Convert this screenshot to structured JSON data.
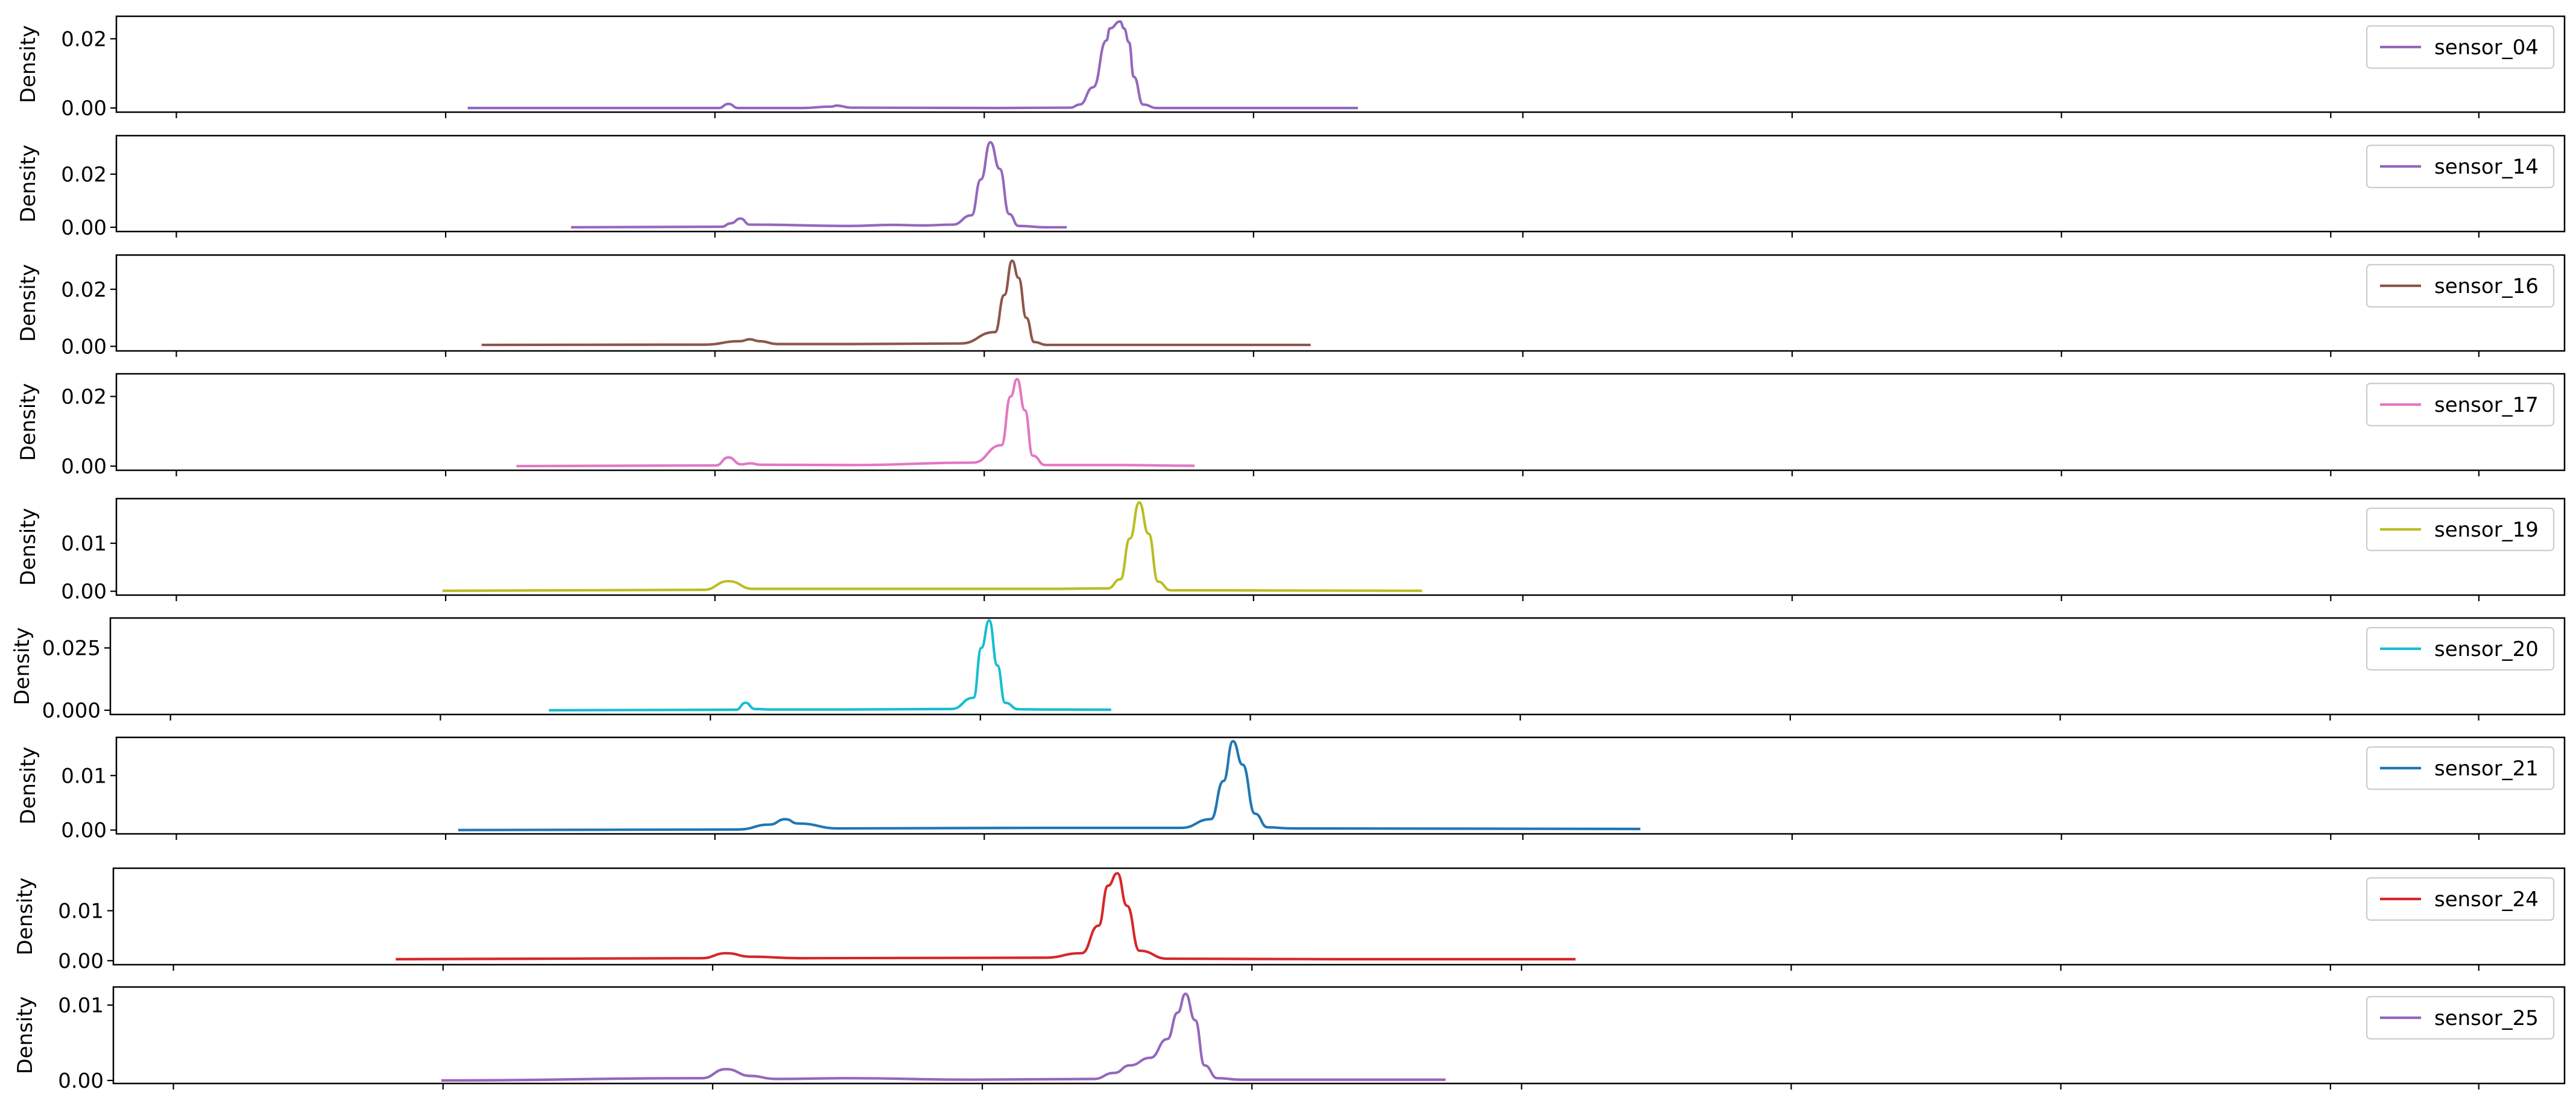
{
  "chart_data": [
    {
      "type": "line",
      "ylabel": "Density",
      "yticks": [
        "0.00",
        "0.02"
      ],
      "ylim": [
        -0.0012,
        0.0265
      ],
      "series": [
        {
          "name": "sensor_04",
          "color": "#9467bd",
          "x": [
            0.1435,
            0.2461,
            0.25,
            0.2539,
            0.28,
            0.2922,
            0.2942,
            0.3,
            0.36,
            0.3898,
            0.3935,
            0.399,
            0.4044,
            0.4058,
            0.41,
            0.4116,
            0.4136,
            0.4156,
            0.4194,
            0.425,
            0.44,
            0.5071
          ],
          "y": [
            0.0,
            0.0,
            0.0012,
            0.0,
            0.0,
            0.0004,
            0.0007,
            0.0001,
            0.0,
            0.0001,
            0.001,
            0.006,
            0.0195,
            0.023,
            0.025,
            0.023,
            0.019,
            0.009,
            0.001,
            0.0,
            0.0,
            0.0
          ]
        }
      ]
    },
    {
      "type": "line",
      "ylabel": "Density",
      "yticks": [
        "0.00",
        "0.02"
      ],
      "ylim": [
        -0.0016,
        0.0345
      ],
      "series": [
        {
          "name": "sensor_14",
          "color": "#9467bd",
          "x": [
            0.1857,
            0.2472,
            0.251,
            0.2549,
            0.2587,
            0.3,
            0.3166,
            0.33,
            0.3416,
            0.3493,
            0.3531,
            0.357,
            0.3608,
            0.3647,
            0.3685,
            0.38,
            0.3882
          ],
          "y": [
            0.0,
            0.0002,
            0.0015,
            0.0033,
            0.001,
            0.0005,
            0.0009,
            0.0007,
            0.001,
            0.0045,
            0.018,
            0.032,
            0.022,
            0.005,
            0.0005,
            0.0,
            0.0
          ]
        }
      ]
    },
    {
      "type": "line",
      "ylabel": "Density",
      "yticks": [
        "0.00",
        "0.02"
      ],
      "ylim": [
        -0.0016,
        0.032
      ],
      "series": [
        {
          "name": "sensor_16",
          "color": "#8c564b",
          "x": [
            0.1492,
            0.24,
            0.2549,
            0.2587,
            0.2626,
            0.2702,
            0.3,
            0.3448,
            0.3589,
            0.3627,
            0.3659,
            0.3685,
            0.3717,
            0.3749,
            0.38,
            0.4,
            0.4878
          ],
          "y": [
            0.0005,
            0.0006,
            0.0018,
            0.0025,
            0.0018,
            0.0008,
            0.0008,
            0.001,
            0.005,
            0.018,
            0.03,
            0.024,
            0.01,
            0.0015,
            0.0005,
            0.0005,
            0.0005
          ]
        }
      ]
    },
    {
      "type": "line",
      "ylabel": "Density",
      "yticks": [
        "0.00",
        "0.02"
      ],
      "ylim": [
        -0.0012,
        0.0265
      ],
      "series": [
        {
          "name": "sensor_17",
          "color": "#e377c2",
          "x": [
            0.1634,
            0.2449,
            0.25,
            0.2552,
            0.259,
            0.2629,
            0.3,
            0.35,
            0.3615,
            0.3653,
            0.3679,
            0.3711,
            0.3743,
            0.3794,
            0.41,
            0.4404
          ],
          "y": [
            0.0,
            0.0002,
            0.0025,
            0.0005,
            0.0008,
            0.0004,
            0.0003,
            0.001,
            0.006,
            0.02,
            0.025,
            0.016,
            0.003,
            0.0003,
            0.0003,
            0.0001
          ]
        }
      ]
    },
    {
      "type": "line",
      "ylabel": "Density",
      "yticks": [
        "0.00",
        "0.01"
      ],
      "ylim": [
        -0.0008,
        0.0193
      ],
      "series": [
        {
          "name": "sensor_19",
          "color": "#bcbd22",
          "x": [
            0.1332,
            0.24,
            0.25,
            0.26,
            0.3,
            0.38,
            0.405,
            0.4101,
            0.414,
            0.4178,
            0.4216,
            0.4255,
            0.4306,
            0.44,
            0.5333
          ],
          "y": [
            0.0001,
            0.0003,
            0.0021,
            0.0005,
            0.0005,
            0.0005,
            0.0006,
            0.0025,
            0.011,
            0.0185,
            0.012,
            0.002,
            0.0002,
            0.0002,
            0.0001
          ]
        }
      ]
    },
    {
      "type": "line",
      "ylabel": "Density",
      "yticks": [
        "0.000",
        "0.025"
      ],
      "ylim": [
        -0.0017,
        0.037
      ],
      "series": [
        {
          "name": "sensor_20",
          "color": "#17becf",
          "x": [
            0.1787,
            0.255,
            0.2588,
            0.2626,
            0.269,
            0.3,
            0.3428,
            0.3517,
            0.3549,
            0.3581,
            0.3614,
            0.3646,
            0.37,
            0.38,
            0.4078
          ],
          "y": [
            0.0,
            0.0002,
            0.003,
            0.0005,
            0.0003,
            0.0003,
            0.0005,
            0.005,
            0.025,
            0.036,
            0.018,
            0.003,
            0.0004,
            0.0003,
            0.0002
          ]
        }
      ]
    },
    {
      "type": "line",
      "ylabel": "Density",
      "yticks": [
        "0.00",
        "0.01"
      ],
      "ylim": [
        -0.0007,
        0.017
      ],
      "series": [
        {
          "name": "sensor_21",
          "color": "#1f77b4",
          "x": [
            0.1396,
            0.254,
            0.2668,
            0.2732,
            0.2784,
            0.295,
            0.38,
            0.435,
            0.4471,
            0.4522,
            0.4561,
            0.46,
            0.4651,
            0.4702,
            0.48,
            0.6225
          ],
          "y": [
            0.0,
            0.0001,
            0.001,
            0.002,
            0.0012,
            0.0003,
            0.0004,
            0.0004,
            0.002,
            0.009,
            0.0163,
            0.012,
            0.003,
            0.0005,
            0.0003,
            0.0002
          ]
        }
      ]
    },
    {
      "type": "line",
      "ylabel": "Density",
      "yticks": [
        "0.00",
        "0.01"
      ],
      "ylim": [
        -0.0008,
        0.0185
      ],
      "series": [
        {
          "name": "sensor_24",
          "color": "#d62728",
          "x": [
            0.1152,
            0.24,
            0.25,
            0.26,
            0.28,
            0.38,
            0.395,
            0.4019,
            0.4058,
            0.4096,
            0.4135,
            0.4186,
            0.43,
            0.5,
            0.5965
          ],
          "y": [
            0.0003,
            0.0005,
            0.0015,
            0.0008,
            0.0005,
            0.0006,
            0.0015,
            0.007,
            0.015,
            0.0175,
            0.011,
            0.002,
            0.0004,
            0.0003,
            0.0003
          ]
        }
      ]
    },
    {
      "type": "line",
      "ylabel": "Density",
      "yticks": [
        "0.00",
        "0.01"
      ],
      "ylim": [
        -0.0004,
        0.0124
      ],
      "series": [
        {
          "name": "sensor_25",
          "color": "#9467bd",
          "x": [
            0.1338,
            0.24,
            0.25,
            0.26,
            0.27,
            0.3,
            0.35,
            0.4,
            0.4083,
            0.4147,
            0.423,
            0.43,
            0.4342,
            0.4374,
            0.4413,
            0.4452,
            0.4504,
            0.46,
            0.5,
            0.5435
          ],
          "y": [
            0.0,
            0.0003,
            0.0015,
            0.0006,
            0.0002,
            0.0003,
            0.0001,
            0.0002,
            0.001,
            0.002,
            0.003,
            0.0055,
            0.009,
            0.0115,
            0.008,
            0.002,
            0.0003,
            0.0001,
            0.0001,
            0.0001
          ]
        }
      ]
    }
  ]
}
